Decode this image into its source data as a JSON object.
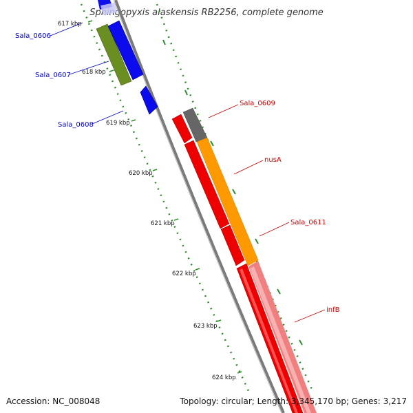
{
  "title": "Sphingopyxis alaskensis RB2256, complete genome",
  "footer": {
    "accession": "Accession: NC_008048",
    "topology": "Topology: circular; Length: 3,345,170 bp; Genes: 3,217"
  },
  "ticks": [
    "617 kbp",
    "618 kbp",
    "619 kbp",
    "620 kbp",
    "621 kbp",
    "622 kbp",
    "623 kbp",
    "624 kbp"
  ],
  "gene_labels": {
    "sala_0606": "Sala_0606",
    "sala_0607": "Sala_0607",
    "sala_0608": "Sala_0608",
    "sala_0609": "Sala_0609",
    "nusa": "nusA",
    "sala_0611": "Sala_0611",
    "infb": "infB"
  },
  "colors": {
    "gene_blue": "#0000ee",
    "gene_olive": "#6b8e23",
    "gene_red": "#ee0000",
    "gene_orange": "#ff9900",
    "gene_pink": "#f08080",
    "gene_gray": "#666666",
    "backbone": "#888888",
    "tick_green": "#008000",
    "label_blue": "#0000cc",
    "label_red": "#cc0000"
  }
}
